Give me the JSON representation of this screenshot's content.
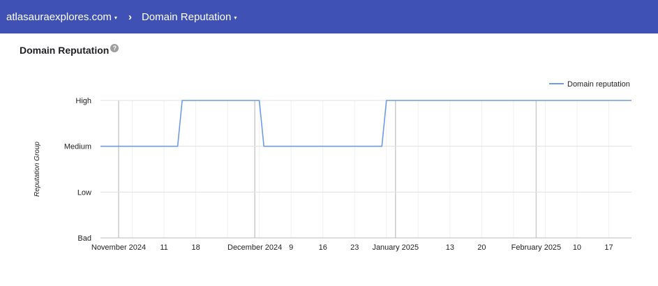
{
  "header": {
    "domain_label": "atlasauraexplores.com",
    "separator": "›",
    "page_label": "Domain Reputation",
    "caret": "▾"
  },
  "card": {
    "title": "Domain Reputation",
    "help_glyph": "?"
  },
  "colors": {
    "header_bg": "#3f51b5",
    "series_line": "#6f9be5",
    "grid": "#e0e0e0"
  },
  "chart_data": {
    "type": "line",
    "title": "",
    "ylabel": "Reputation Group",
    "y_categories": [
      "Bad",
      "Low",
      "Medium",
      "High"
    ],
    "x_ticks": [
      {
        "date": "2024-11-01",
        "label": "November 2024"
      },
      {
        "date": "2024-11-11",
        "label": "11"
      },
      {
        "date": "2024-11-18",
        "label": "18"
      },
      {
        "date": "2024-12-01",
        "label": "December 2024"
      },
      {
        "date": "2024-12-09",
        "label": "9"
      },
      {
        "date": "2024-12-16",
        "label": "16"
      },
      {
        "date": "2024-12-23",
        "label": "23"
      },
      {
        "date": "2025-01-01",
        "label": "January 2025"
      },
      {
        "date": "2025-01-13",
        "label": "13"
      },
      {
        "date": "2025-01-20",
        "label": "20"
      },
      {
        "date": "2025-02-01",
        "label": "February 2025"
      },
      {
        "date": "2025-02-10",
        "label": "10"
      },
      {
        "date": "2025-02-17",
        "label": "17"
      }
    ],
    "xlim": [
      "2024-10-28",
      "2025-02-22"
    ],
    "legend": {
      "position": "top-right"
    },
    "series": [
      {
        "name": "Domain reputation",
        "points": [
          {
            "x": "2024-10-28",
            "y": "Medium"
          },
          {
            "x": "2024-11-14",
            "y": "Medium"
          },
          {
            "x": "2024-11-15",
            "y": "High"
          },
          {
            "x": "2024-12-02",
            "y": "High"
          },
          {
            "x": "2024-12-03",
            "y": "Medium"
          },
          {
            "x": "2024-12-29",
            "y": "Medium"
          },
          {
            "x": "2024-12-30",
            "y": "High"
          },
          {
            "x": "2025-02-22",
            "y": "High"
          }
        ]
      }
    ]
  }
}
